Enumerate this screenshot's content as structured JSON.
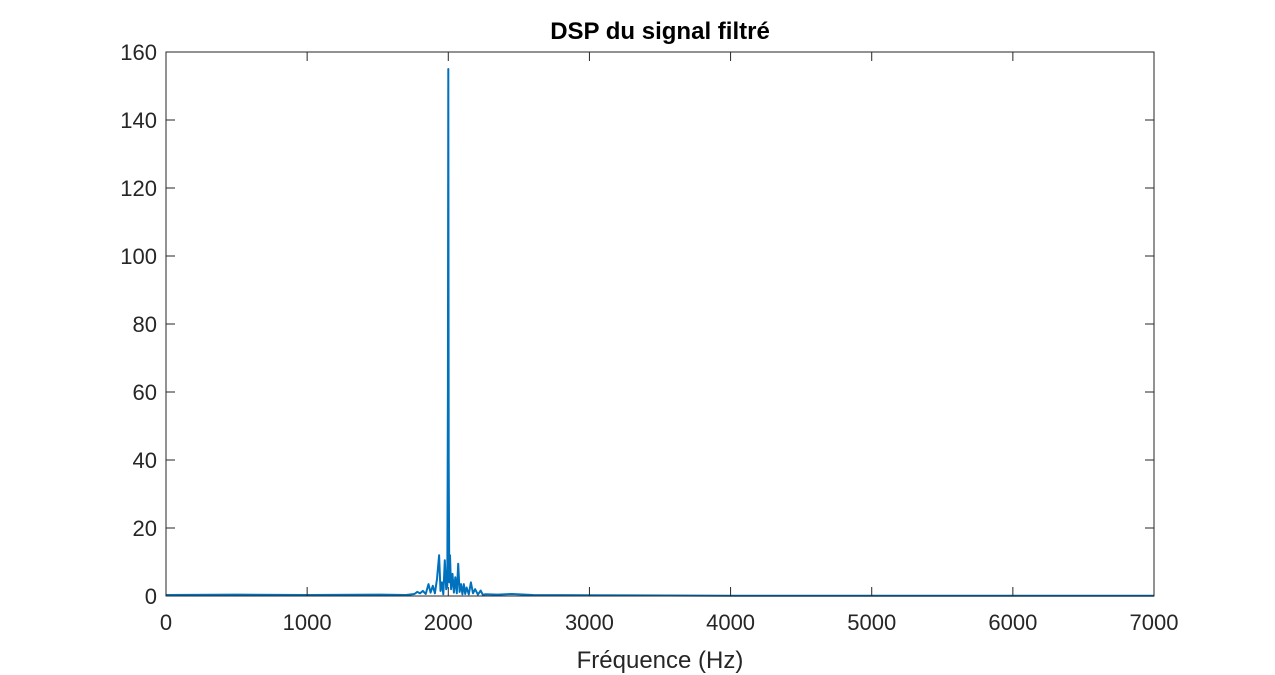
{
  "chart_data": {
    "type": "line",
    "title": "DSP du signal filtré",
    "xlabel": "Fréquence (Hz)",
    "ylabel": "",
    "xlim": [
      0,
      7000
    ],
    "ylim": [
      0,
      160
    ],
    "xticks": [
      0,
      1000,
      2000,
      3000,
      4000,
      5000,
      6000,
      7000
    ],
    "yticks": [
      0,
      20,
      40,
      60,
      80,
      100,
      120,
      140,
      160
    ],
    "xtick_labels": [
      "0",
      "1000",
      "2000",
      "3000",
      "4000",
      "5000",
      "6000",
      "7000"
    ],
    "ytick_labels": [
      "0",
      "20",
      "40",
      "60",
      "80",
      "100",
      "120",
      "140",
      "160"
    ],
    "grid": false,
    "box": true,
    "series": [
      {
        "color": "#0072BD",
        "x": [
          0,
          500,
          1000,
          1500,
          1700,
          1760,
          1780,
          1800,
          1820,
          1840,
          1860,
          1875,
          1890,
          1905,
          1920,
          1935,
          1945,
          1955,
          1965,
          1975,
          1985,
          1993,
          1997,
          2000,
          2003,
          2007,
          2012,
          2020,
          2030,
          2040,
          2050,
          2060,
          2070,
          2080,
          2090,
          2100,
          2110,
          2120,
          2130,
          2145,
          2160,
          2175,
          2190,
          2210,
          2230,
          2245,
          2260,
          2350,
          2450,
          2600,
          3000,
          4000,
          5000,
          6000,
          7000
        ],
        "y": [
          0.3,
          0.4,
          0.3,
          0.4,
          0.3,
          0.6,
          1.2,
          0.8,
          1.5,
          0.6,
          3.5,
          1.0,
          3.0,
          0.8,
          5.0,
          12.0,
          1.5,
          4.0,
          0.5,
          10.5,
          2.0,
          3.0,
          60.0,
          155.0,
          40.0,
          4.0,
          12.0,
          2.0,
          6.5,
          1.0,
          5.5,
          0.8,
          9.5,
          1.2,
          3.5,
          0.5,
          3.5,
          0.6,
          2.5,
          0.5,
          4.0,
          0.8,
          2.0,
          0.4,
          1.6,
          0.3,
          0.5,
          0.4,
          0.6,
          0.3,
          0.2,
          0.1,
          0.1,
          0.1,
          0.1
        ]
      }
    ]
  }
}
